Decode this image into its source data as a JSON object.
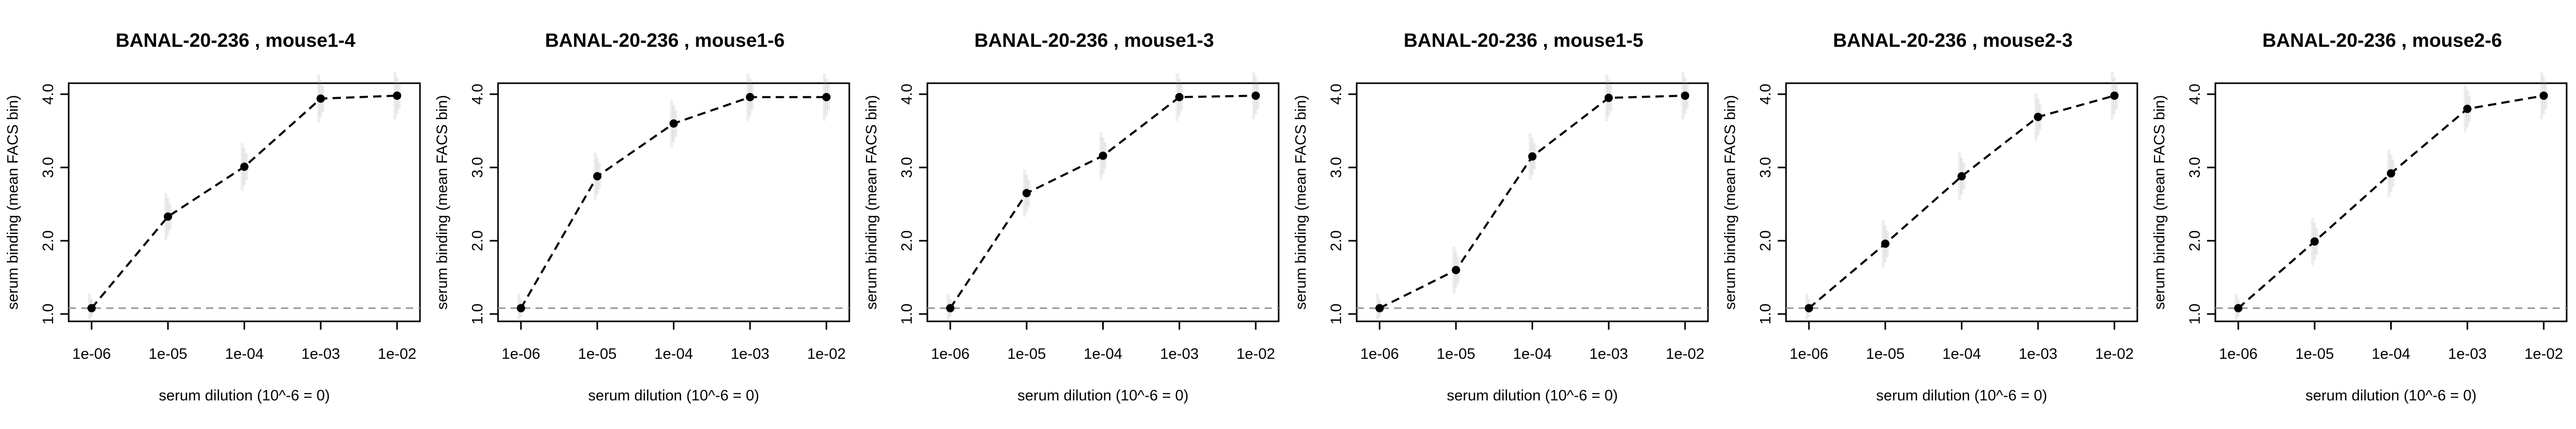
{
  "chart_data": [
    {
      "type": "line",
      "title": "BANAL-20-236 , mouse1-4",
      "xlabel": "serum dilution (10^-6 = 0)",
      "ylabel": "serum binding (mean FACS bin)",
      "x_scale": "log",
      "x": [
        1e-06,
        1e-05,
        0.0001,
        0.001,
        0.01
      ],
      "x_tick_labels": [
        "1e-06",
        "1e-05",
        "1e-04",
        "1e-03",
        "1e-02"
      ],
      "y": [
        1.08,
        2.33,
        3.01,
        3.94,
        3.98
      ],
      "y_ticks": [
        1.0,
        2.0,
        3.0,
        4.0
      ],
      "y_tick_labels": [
        "1.0",
        "2.0",
        "3.0",
        "4.0"
      ],
      "ylim": [
        0.9,
        4.15
      ],
      "baseline": 1.08,
      "grid": false
    },
    {
      "type": "line",
      "title": "BANAL-20-236 , mouse1-6",
      "xlabel": "serum dilution (10^-6 = 0)",
      "ylabel": "serum binding (mean FACS bin)",
      "x_scale": "log",
      "x": [
        1e-06,
        1e-05,
        0.0001,
        0.001,
        0.01
      ],
      "x_tick_labels": [
        "1e-06",
        "1e-05",
        "1e-04",
        "1e-03",
        "1e-02"
      ],
      "y": [
        1.08,
        2.88,
        3.6,
        3.96,
        3.96
      ],
      "y_ticks": [
        1.0,
        2.0,
        3.0,
        4.0
      ],
      "y_tick_labels": [
        "1.0",
        "2.0",
        "3.0",
        "4.0"
      ],
      "ylim": [
        0.9,
        4.15
      ],
      "baseline": 1.08,
      "grid": false
    },
    {
      "type": "line",
      "title": "BANAL-20-236 , mouse1-3",
      "xlabel": "serum dilution (10^-6 = 0)",
      "ylabel": "serum binding (mean FACS bin)",
      "x_scale": "log",
      "x": [
        1e-06,
        1e-05,
        0.0001,
        0.001,
        0.01
      ],
      "x_tick_labels": [
        "1e-06",
        "1e-05",
        "1e-04",
        "1e-03",
        "1e-02"
      ],
      "y": [
        1.08,
        2.65,
        3.16,
        3.96,
        3.98
      ],
      "y_ticks": [
        1.0,
        2.0,
        3.0,
        4.0
      ],
      "y_tick_labels": [
        "1.0",
        "2.0",
        "3.0",
        "4.0"
      ],
      "ylim": [
        0.9,
        4.15
      ],
      "baseline": 1.08,
      "grid": false
    },
    {
      "type": "line",
      "title": "BANAL-20-236 , mouse1-5",
      "xlabel": "serum dilution (10^-6 = 0)",
      "ylabel": "serum binding (mean FACS bin)",
      "x_scale": "log",
      "x": [
        1e-06,
        1e-05,
        0.0001,
        0.001,
        0.01
      ],
      "x_tick_labels": [
        "1e-06",
        "1e-05",
        "1e-04",
        "1e-03",
        "1e-02"
      ],
      "y": [
        1.08,
        1.6,
        3.15,
        3.95,
        3.98
      ],
      "y_ticks": [
        1.0,
        2.0,
        3.0,
        4.0
      ],
      "y_tick_labels": [
        "1.0",
        "2.0",
        "3.0",
        "4.0"
      ],
      "ylim": [
        0.9,
        4.15
      ],
      "baseline": 1.08,
      "grid": false
    },
    {
      "type": "line",
      "title": "BANAL-20-236 , mouse2-3",
      "xlabel": "serum dilution (10^-6 = 0)",
      "ylabel": "serum binding (mean FACS bin)",
      "x_scale": "log",
      "x": [
        1e-06,
        1e-05,
        0.0001,
        0.001,
        0.01
      ],
      "x_tick_labels": [
        "1e-06",
        "1e-05",
        "1e-04",
        "1e-03",
        "1e-02"
      ],
      "y": [
        1.08,
        1.96,
        2.88,
        3.69,
        3.98
      ],
      "y_ticks": [
        1.0,
        2.0,
        3.0,
        4.0
      ],
      "y_tick_labels": [
        "1.0",
        "2.0",
        "3.0",
        "4.0"
      ],
      "ylim": [
        0.9,
        4.15
      ],
      "baseline": 1.08,
      "grid": false
    },
    {
      "type": "line",
      "title": "BANAL-20-236 , mouse2-6",
      "xlabel": "serum dilution (10^-6 = 0)",
      "ylabel": "serum binding (mean FACS bin)",
      "x_scale": "log",
      "x": [
        1e-06,
        1e-05,
        0.0001,
        0.001,
        0.01
      ],
      "x_tick_labels": [
        "1e-06",
        "1e-05",
        "1e-04",
        "1e-03",
        "1e-02"
      ],
      "y": [
        1.08,
        1.99,
        2.92,
        3.8,
        3.98
      ],
      "y_ticks": [
        1.0,
        2.0,
        3.0,
        4.0
      ],
      "y_tick_labels": [
        "1.0",
        "2.0",
        "3.0",
        "4.0"
      ],
      "ylim": [
        0.9,
        4.15
      ],
      "baseline": 1.08,
      "grid": false
    }
  ]
}
